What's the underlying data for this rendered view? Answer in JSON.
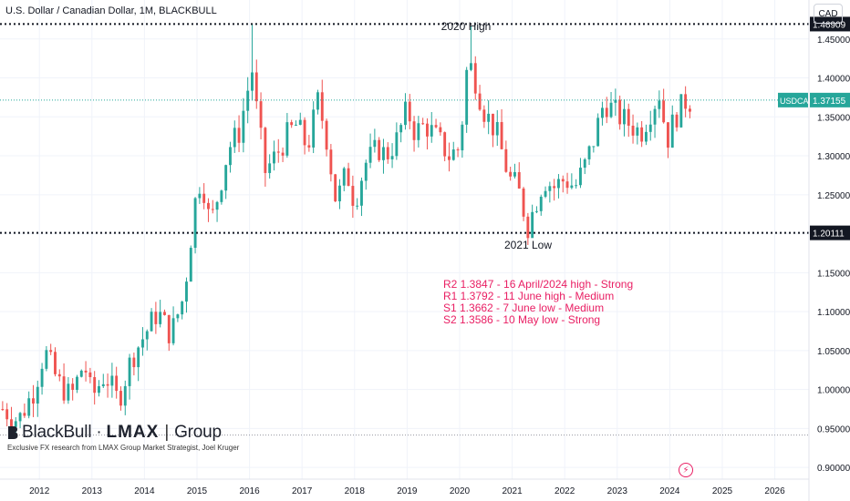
{
  "header": {
    "title": "U.S. Dollar / Canadian Dollar, 1M, BLACKBULL",
    "currency": "CAD"
  },
  "chart_data": {
    "type": "candlestick",
    "symbol": "USDCAD",
    "last_price": "1.37155",
    "x_ticks": [
      "2012",
      "2013",
      "2014",
      "2015",
      "2016",
      "2017",
      "2018",
      "2019",
      "2020",
      "2021",
      "2022",
      "2023",
      "2024",
      "2025",
      "2026"
    ],
    "y_ticks": [
      "1.45000",
      "1.40000",
      "1.35000",
      "1.30000",
      "1.25000",
      "1.20000",
      "1.15000",
      "1.10000",
      "1.05000",
      "1.00000",
      "0.95000",
      "0.90000"
    ],
    "ylim": [
      0.885,
      1.5
    ],
    "xlim": [
      2011.25,
      2026.65
    ],
    "levels": [
      {
        "label": "1.46909",
        "value": 1.46909,
        "annotation": "2020 High"
      },
      {
        "label": "1.20111",
        "value": 1.20111,
        "annotation": "2021 Low"
      }
    ],
    "reference_line": 0.9415,
    "up_color": "#26a69a",
    "down_color": "#ef5350",
    "close_path": [
      [
        2011.3,
        0.975
      ],
      [
        2011.6,
        0.96
      ],
      [
        2011.9,
        1.0
      ],
      [
        2012.1,
        1.05
      ],
      [
        2012.35,
        1.01
      ],
      [
        2012.6,
        0.99
      ],
      [
        2012.85,
        1.035
      ],
      [
        2013.0,
        0.99
      ],
      [
        2013.25,
        1.02
      ],
      [
        2013.5,
        0.985
      ],
      [
        2013.75,
        1.04
      ],
      [
        2014.0,
        1.07
      ],
      [
        2014.25,
        1.1
      ],
      [
        2014.5,
        1.07
      ],
      [
        2014.75,
        1.12
      ],
      [
        2015.0,
        1.26
      ],
      [
        2015.1,
        1.27
      ],
      [
        2015.25,
        1.21
      ],
      [
        2015.4,
        1.25
      ],
      [
        2015.6,
        1.31
      ],
      [
        2015.8,
        1.33
      ],
      [
        2015.95,
        1.38
      ],
      [
        2016.05,
        1.41
      ],
      [
        2016.15,
        1.35
      ],
      [
        2016.3,
        1.28
      ],
      [
        2016.5,
        1.3
      ],
      [
        2016.75,
        1.33
      ],
      [
        2016.9,
        1.34
      ],
      [
        2017.1,
        1.31
      ],
      [
        2017.3,
        1.37
      ],
      [
        2017.45,
        1.33
      ],
      [
        2017.65,
        1.24
      ],
      [
        2017.85,
        1.28
      ],
      [
        2018.0,
        1.24
      ],
      [
        2018.2,
        1.29
      ],
      [
        2018.45,
        1.31
      ],
      [
        2018.6,
        1.3
      ],
      [
        2018.8,
        1.32
      ],
      [
        2019.0,
        1.36
      ],
      [
        2019.15,
        1.33
      ],
      [
        2019.35,
        1.34
      ],
      [
        2019.6,
        1.32
      ],
      [
        2019.8,
        1.3
      ],
      [
        2020.0,
        1.31
      ],
      [
        2020.15,
        1.42
      ],
      [
        2020.25,
        1.41
      ],
      [
        2020.45,
        1.36
      ],
      [
        2020.7,
        1.33
      ],
      [
        2020.95,
        1.27
      ],
      [
        2021.1,
        1.26
      ],
      [
        2021.3,
        1.21
      ],
      [
        2021.45,
        1.24
      ],
      [
        2021.6,
        1.27
      ],
      [
        2021.8,
        1.26
      ],
      [
        2022.0,
        1.27
      ],
      [
        2022.2,
        1.26
      ],
      [
        2022.4,
        1.29
      ],
      [
        2022.55,
        1.32
      ],
      [
        2022.75,
        1.37
      ],
      [
        2022.9,
        1.36
      ],
      [
        2023.05,
        1.35
      ],
      [
        2023.25,
        1.34
      ],
      [
        2023.45,
        1.33
      ],
      [
        2023.65,
        1.36
      ],
      [
        2023.8,
        1.38
      ],
      [
        2023.95,
        1.32
      ],
      [
        2024.1,
        1.35
      ],
      [
        2024.3,
        1.37
      ],
      [
        2024.45,
        1.37
      ]
    ]
  },
  "annotations": {
    "high_label": "2020 High",
    "low_label": "2021 Low",
    "level_lines": [
      "R2 1.3847 - 16 April/2024 high - Strong",
      "R1 1.3792 - 11 June high - Medium",
      "S1 1.3662 - 7 June low - Medium",
      "S2 1.3586 - 10 May low - Strong"
    ]
  },
  "branding": {
    "name_left": "BlackBull",
    "name_mid": "LMAX",
    "name_right": "Group",
    "subtitle": "Exclusive FX research from LMAX Group Market Strategist, Joel Kruger"
  },
  "icons": {
    "flash": "lightning-icon"
  }
}
